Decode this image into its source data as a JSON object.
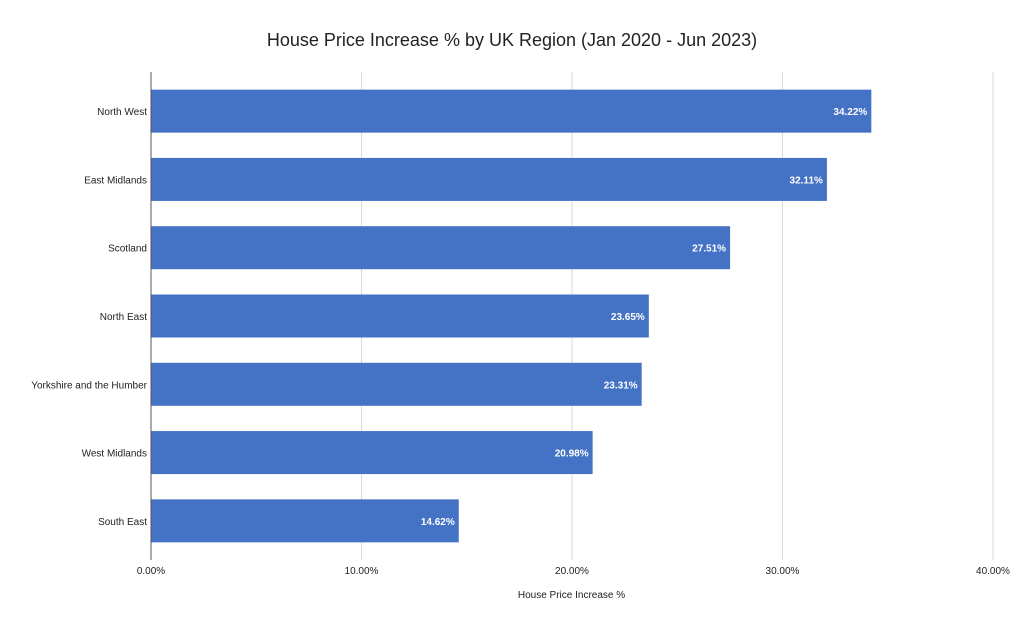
{
  "chart_data": {
    "type": "bar",
    "orientation": "horizontal",
    "title": "House Price Increase % by UK Region (Jan 2020 - Jun 2023)",
    "xlabel": "House Price Increase %",
    "ylabel": "",
    "categories": [
      "North West",
      "East Midlands",
      "Scotland",
      "North East",
      "Yorkshire and the Humber",
      "West Midlands",
      "South East"
    ],
    "values": [
      34.22,
      32.11,
      27.51,
      23.65,
      23.31,
      20.98,
      14.62
    ],
    "data_labels": [
      "34.22%",
      "32.11%",
      "27.51%",
      "23.65%",
      "23.31%",
      "20.98%",
      "14.62%"
    ],
    "xlim": [
      0,
      40
    ],
    "x_ticks": [
      0,
      10,
      20,
      30,
      40
    ],
    "x_tick_labels": [
      "0.00%",
      "10.00%",
      "20.00%",
      "30.00%",
      "40.00%"
    ],
    "grid": true,
    "legend": "none",
    "bar_color": "#4472c4",
    "grid_color": "#d9d9d9"
  }
}
